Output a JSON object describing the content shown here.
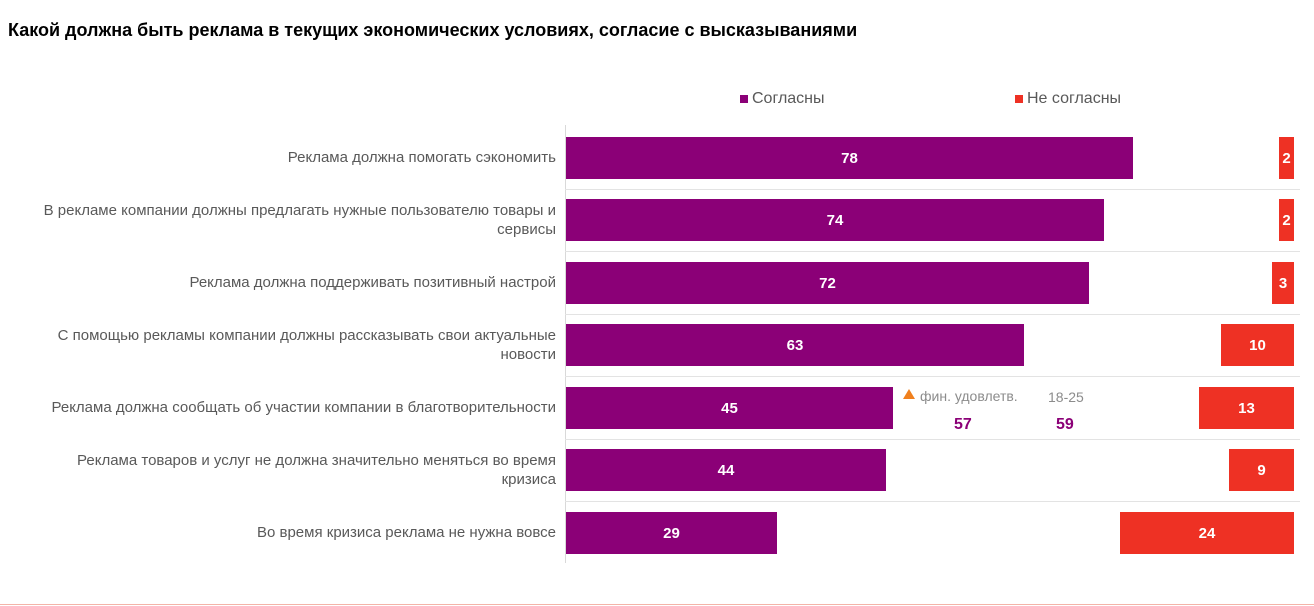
{
  "chart_data": {
    "type": "bar",
    "orientation": "horizontal",
    "title": "Какой должна быть реклама в текущих экономических условиях, согласие с высказываниями",
    "categories": [
      "Реклама должна помогать сэкономить",
      "В рекламе компании должны предлагать нужные пользователю товары и сервисы",
      "Реклама должна поддерживать позитивный настрой",
      "С помощью рекламы компании должны рассказывать свои актуальные новости",
      "Реклама должна сообщать об участии компании в благотворительности",
      "Реклама товаров и услуг не должна значительно меняться во время кризиса",
      "Во время кризиса реклама не нужна вовсе"
    ],
    "series": [
      {
        "name": "Согласны",
        "color": "#8b0077",
        "values": [
          78,
          74,
          72,
          63,
          45,
          44,
          29
        ],
        "anchor": "left"
      },
      {
        "name": "Не согласны",
        "color": "#ee3124",
        "values": [
          2,
          2,
          3,
          10,
          13,
          9,
          24
        ],
        "anchor": "right"
      }
    ],
    "legend_position": "top",
    "value_labels": true,
    "annotation": {
      "category_index": 4,
      "marker": "triangle",
      "marker_color": "#f0801e",
      "items": [
        {
          "label": "фин. удовлетв.",
          "value": "57"
        },
        {
          "label": "18-25",
          "value": "59"
        }
      ]
    }
  }
}
